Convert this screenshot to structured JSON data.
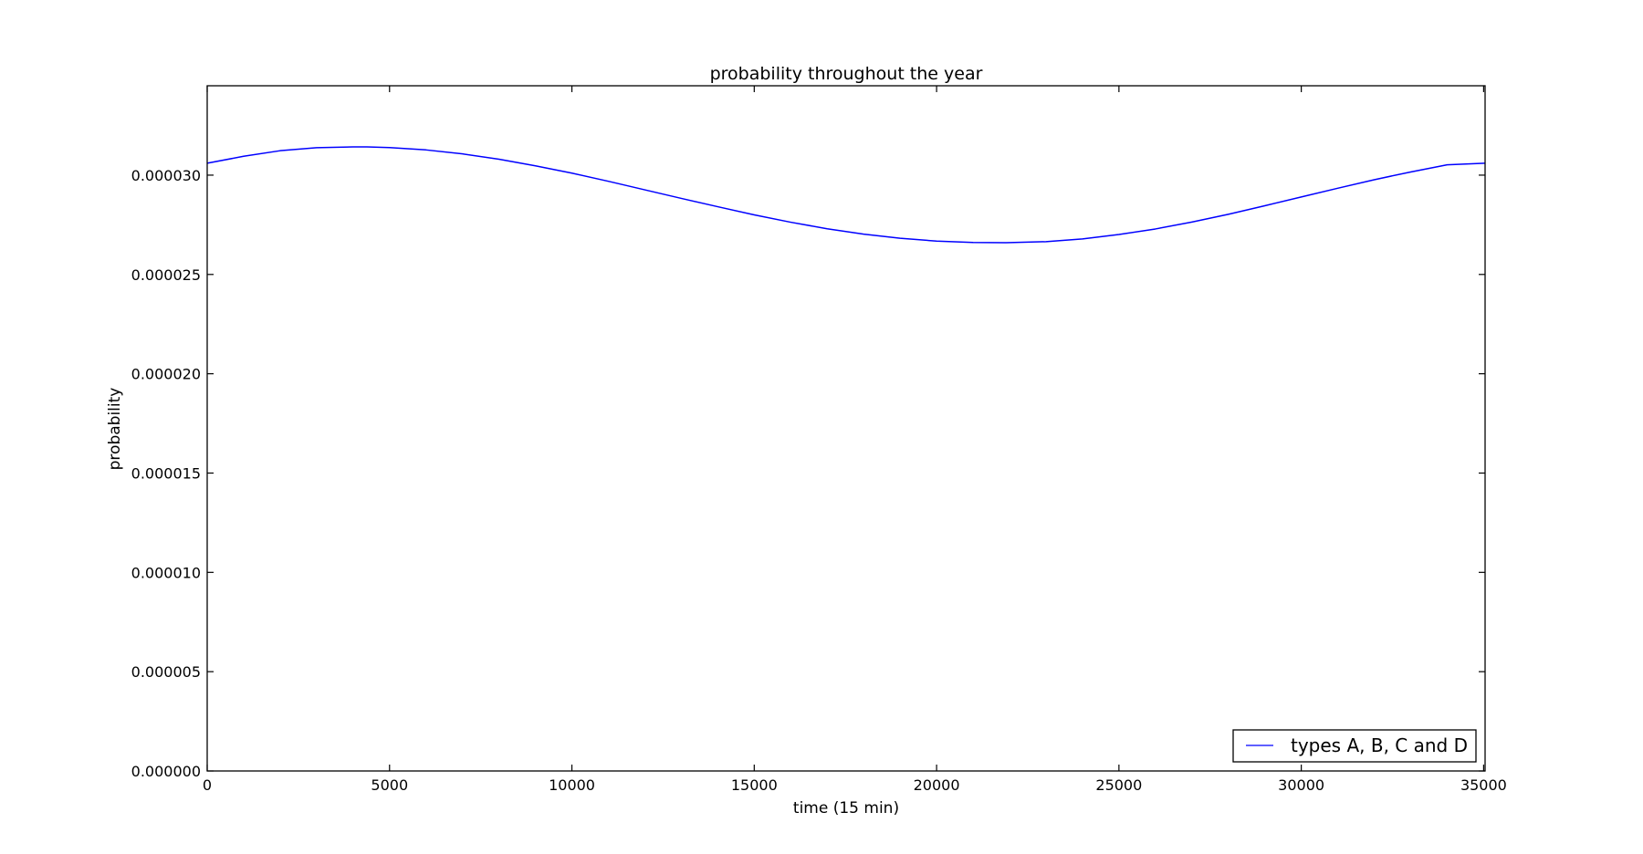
{
  "chart_data": {
    "type": "line",
    "title": "probability throughout the year",
    "xlabel": "time (15 min)",
    "ylabel": "probability",
    "xlim": [
      0,
      35040
    ],
    "ylim": [
      0,
      3.45e-05
    ],
    "grid": false,
    "legend_position": "lower-right",
    "x_ticks": [
      0,
      5000,
      10000,
      15000,
      20000,
      25000,
      30000,
      35000
    ],
    "x_tick_labels": [
      "0",
      "5000",
      "10000",
      "15000",
      "20000",
      "25000",
      "30000",
      "35000"
    ],
    "y_ticks": [
      0,
      5e-06,
      1e-05,
      1.5e-05,
      2e-05,
      2.5e-05,
      3e-05
    ],
    "y_tick_labels": [
      "0.000000",
      "0.000005",
      "0.000010",
      "0.000015",
      "0.000020",
      "0.000025",
      "0.000030"
    ],
    "series": [
      {
        "name": "types A, B, C and D",
        "color": "#0000ff",
        "x": [
          0,
          1000,
          2000,
          3000,
          4000,
          4380,
          5000,
          6000,
          7000,
          8000,
          9000,
          10000,
          11000,
          12000,
          13000,
          14000,
          15000,
          16000,
          17000,
          18000,
          19000,
          20000,
          21000,
          21900,
          23000,
          24000,
          25000,
          26000,
          27000,
          28000,
          29000,
          30000,
          31000,
          32000,
          33000,
          34000,
          35040
        ],
        "y": [
          3.06e-05,
          3.095e-05,
          3.123e-05,
          3.138e-05,
          3.142e-05,
          3.142e-05,
          3.139e-05,
          3.127e-05,
          3.107e-05,
          3.08e-05,
          3.047e-05,
          3.01e-05,
          2.969e-05,
          2.926e-05,
          2.883e-05,
          2.841e-05,
          2.8e-05,
          2.763e-05,
          2.73e-05,
          2.703e-05,
          2.682e-05,
          2.668e-05,
          2.661e-05,
          2.66e-05,
          2.665e-05,
          2.679e-05,
          2.701e-05,
          2.729e-05,
          2.764e-05,
          2.803e-05,
          2.846e-05,
          2.89e-05,
          2.934e-05,
          2.977e-05,
          3.016e-05,
          3.052e-05,
          3.06e-05
        ]
      }
    ]
  }
}
